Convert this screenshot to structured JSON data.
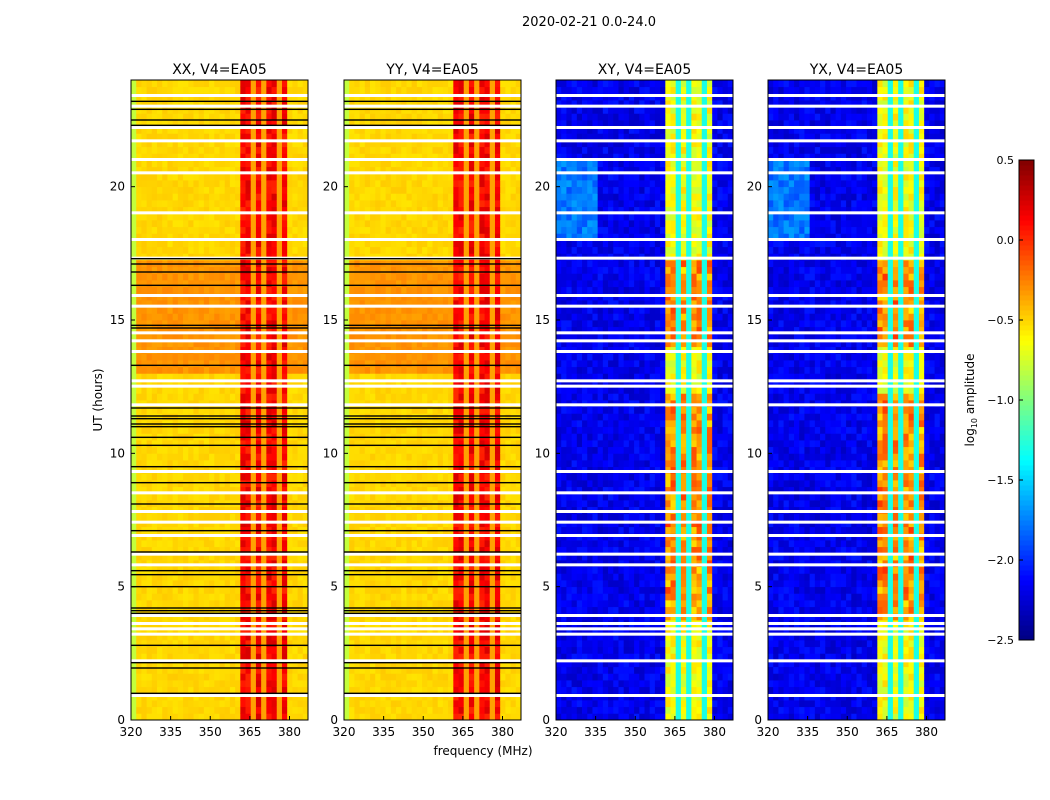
{
  "chart_data": {
    "type": "heatmap",
    "suptitle": "2020-02-21 0.0-24.0",
    "xlabel": "frequency (MHz)",
    "ylabel": "UT (hours)",
    "xlim": [
      320,
      387
    ],
    "ylim": [
      0,
      24
    ],
    "xticks": [
      320,
      335,
      350,
      365,
      380
    ],
    "yticks": [
      0,
      5,
      10,
      15,
      20
    ],
    "panels": [
      {
        "title": "XX, V4=EA05",
        "kind": "parallel"
      },
      {
        "title": "YY, V4=EA05",
        "kind": "parallel"
      },
      {
        "title": "XY, V4=EA05",
        "kind": "cross"
      },
      {
        "title": "YX, V4=EA05",
        "kind": "cross"
      }
    ],
    "band_MHz": [
      362,
      380
    ],
    "band_stripes_MHz": [
      366,
      371,
      376
    ],
    "parallel_levels": {
      "edge": -0.8,
      "base": -0.55,
      "band": 0.0
    },
    "cross_levels": {
      "base": -2.3,
      "band": -0.8,
      "band_hot": -0.2
    },
    "flagged_white_hours": [
      0.9,
      2.2,
      3.2,
      3.4,
      3.6,
      3.9,
      5.8,
      6.2,
      6.9,
      7.4,
      7.8,
      8.5,
      9.3,
      11.8,
      12.5,
      12.7,
      13.8,
      14.2,
      14.5,
      15.5,
      15.9,
      17.3,
      18.0,
      19.0,
      20.5,
      21.0,
      21.7,
      22.2,
      23.0,
      23.4
    ],
    "black_line_hours": [
      1.0,
      1.95,
      2.15,
      2.8,
      4.0,
      4.1,
      4.2,
      5.0,
      5.45,
      5.6,
      6.3,
      7.1,
      8.1,
      8.9,
      9.5,
      10.3,
      10.6,
      11.0,
      11.1,
      11.3,
      11.4,
      11.7,
      13.3,
      14.7,
      14.8,
      16.3,
      16.8,
      17.1,
      17.3,
      22.3,
      22.5,
      22.9,
      23.2
    ],
    "colorbar": {
      "label": "log10 amplitude",
      "label_main": "log",
      "label_sub": "10",
      "label_rest": " amplitude",
      "range": [
        -2.5,
        0.5
      ],
      "ticks": [
        "0.5",
        "0.0",
        "−0.5",
        "−1.0",
        "−1.5",
        "−2.0",
        "−2.5"
      ],
      "tick_values": [
        0.5,
        0.0,
        -0.5,
        -1.0,
        -1.5,
        -2.0,
        -2.5
      ],
      "colormap": "jet"
    }
  }
}
